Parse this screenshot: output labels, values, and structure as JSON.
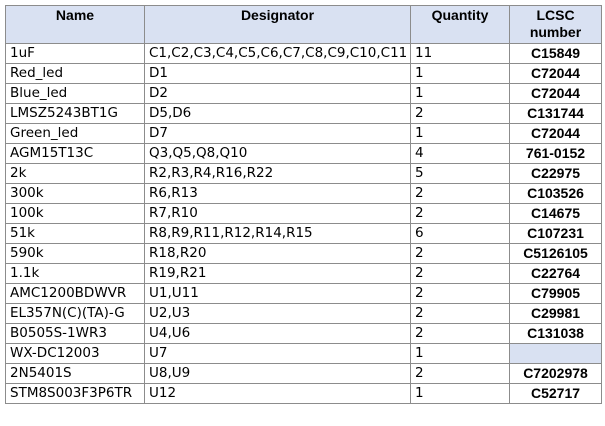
{
  "table": {
    "headers": {
      "name": "Name",
      "designator": "Designator",
      "quantity": "Quantity",
      "lcsc": "LCSC number"
    },
    "rows": [
      {
        "name": "1uF",
        "designator": "C1,C2,C3,C4,C5,C6,C7,C8,C9,C10,C11",
        "quantity": "11",
        "lcsc": "C15849"
      },
      {
        "name": "Red_led",
        "designator": "D1",
        "quantity": "1",
        "lcsc": "C72044"
      },
      {
        "name": "Blue_led",
        "designator": "D2",
        "quantity": "1",
        "lcsc": "C72044"
      },
      {
        "name": "LMSZ5243BT1G",
        "designator": "D5,D6",
        "quantity": "2",
        "lcsc": "C131744"
      },
      {
        "name": "Green_led",
        "designator": "D7",
        "quantity": "1",
        "lcsc": "C72044"
      },
      {
        "name": "AGM15T13C",
        "designator": "Q3,Q5,Q8,Q10",
        "quantity": "4",
        "lcsc": "761-0152"
      },
      {
        "name": "2k",
        "designator": "R2,R3,R4,R16,R22",
        "quantity": "5",
        "lcsc": "C22975"
      },
      {
        "name": "300k",
        "designator": "R6,R13",
        "quantity": "2",
        "lcsc": "C103526"
      },
      {
        "name": "100k",
        "designator": "R7,R10",
        "quantity": "2",
        "lcsc": "C14675"
      },
      {
        "name": "51k",
        "designator": "R8,R9,R11,R12,R14,R15",
        "quantity": "6",
        "lcsc": "C107231"
      },
      {
        "name": "590k",
        "designator": "R18,R20",
        "quantity": "2",
        "lcsc": "C5126105"
      },
      {
        "name": "1.1k",
        "designator": "R19,R21",
        "quantity": "2",
        "lcsc": "C22764"
      },
      {
        "name": "AMC1200BDWVR",
        "designator": "U1,U11",
        "quantity": "2",
        "lcsc": "C79905"
      },
      {
        "name": "EL357N(C)(TA)-G",
        "designator": "U2,U3",
        "quantity": "2",
        "lcsc": "C29981"
      },
      {
        "name": "B0505S-1WR3",
        "designator": "U4,U6",
        "quantity": "2",
        "lcsc": "C131038"
      },
      {
        "name": "WX-DC12003",
        "designator": "U7",
        "quantity": "1",
        "lcsc": ""
      },
      {
        "name": "2N5401S",
        "designator": "U8,U9",
        "quantity": "2",
        "lcsc": "C7202978"
      },
      {
        "name": "STM8S003F3P6TR",
        "designator": "U12",
        "quantity": "1",
        "lcsc": "C52717"
      }
    ]
  },
  "colors": {
    "header_fill": "#d9e1f2",
    "border": "#8c8c8c"
  }
}
